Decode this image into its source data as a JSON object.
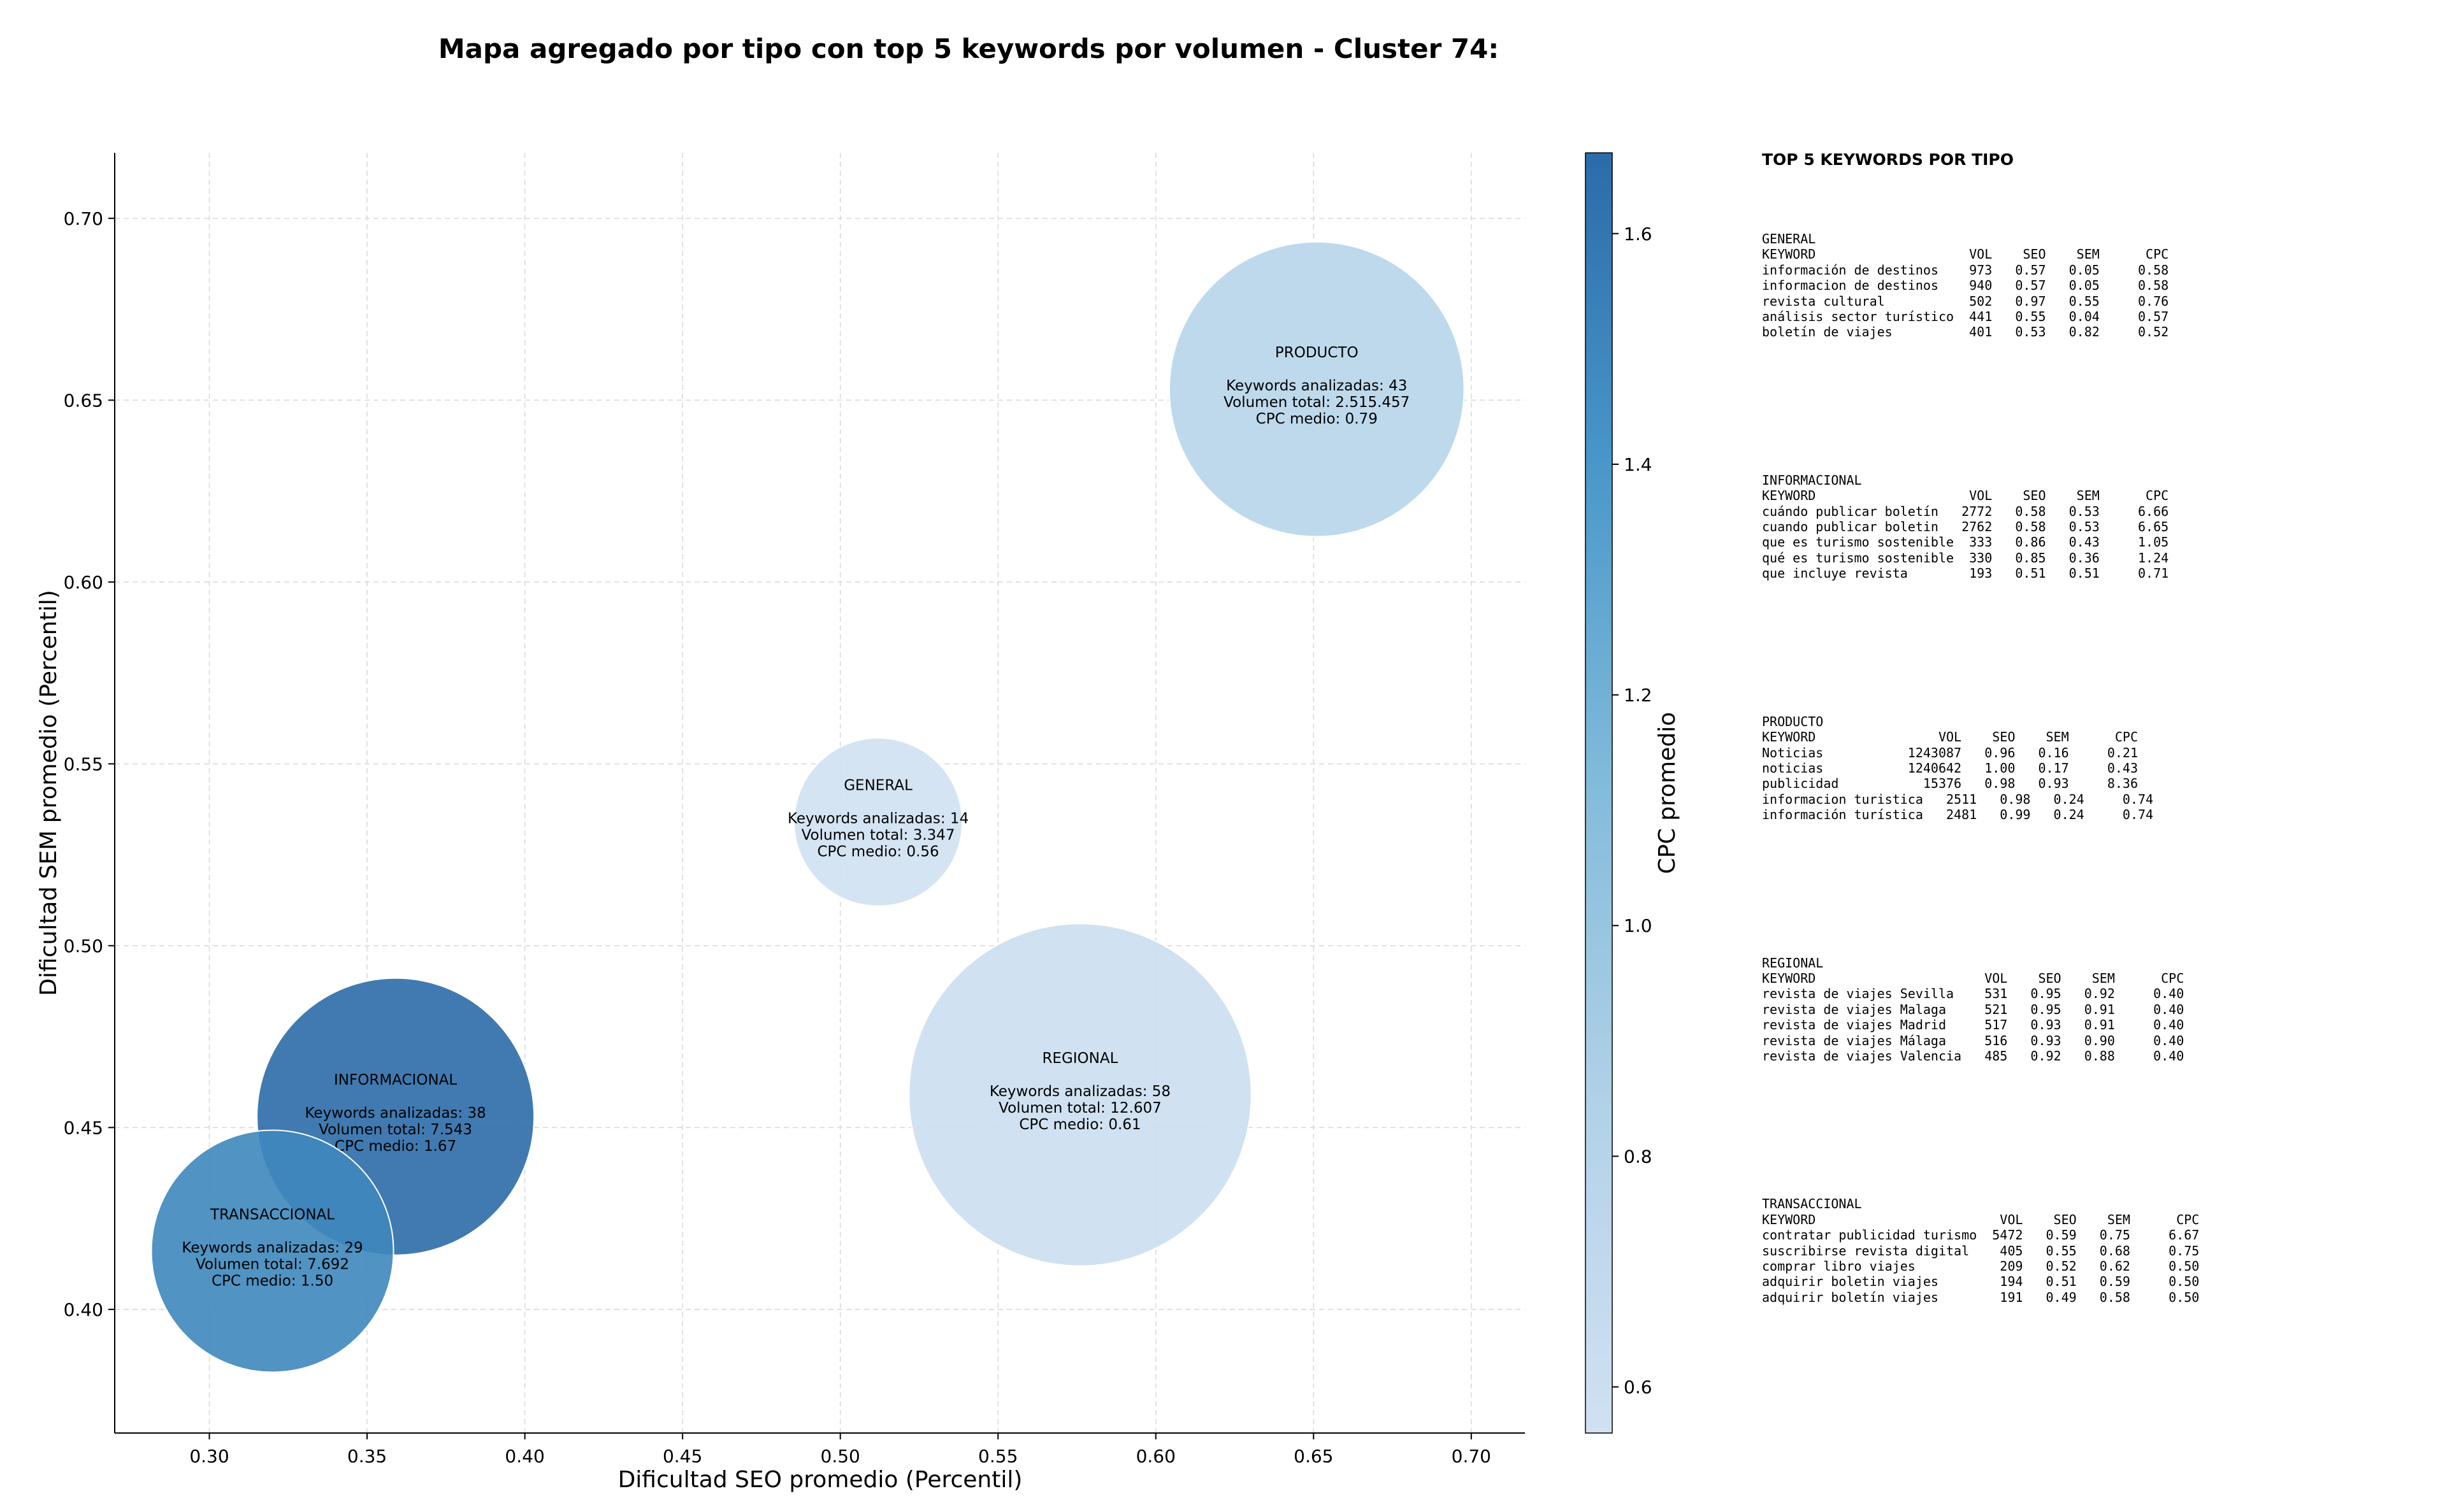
{
  "title": "Mapa agregado por tipo con top 5 keywords por volumen - Cluster 74:",
  "chart_data": {
    "type": "scatter",
    "xlabel": "Dificultad SEO promedio (Percentil)",
    "ylabel": "Dificultad SEM promedio (Percentil)",
    "xlim": [
      0.27,
      0.717
    ],
    "ylim": [
      0.366,
      0.718
    ],
    "xticks": [
      "0.30",
      "0.35",
      "0.40",
      "0.45",
      "0.50",
      "0.55",
      "0.60",
      "0.65",
      "0.70"
    ],
    "yticks": [
      "0.40",
      "0.45",
      "0.50",
      "0.55",
      "0.60",
      "0.65",
      "0.70"
    ],
    "grid": true,
    "colorbar": {
      "label": "CPC promedio",
      "min": 0.56,
      "max": 1.67,
      "ticks": [
        "0.6",
        "0.8",
        "1.0",
        "1.2",
        "1.4",
        "1.6"
      ]
    },
    "bubble_text": {
      "keywords_prefix": "Keywords analizadas: ",
      "volume_prefix": "Volumen total: ",
      "cpc_prefix": "CPC medio: "
    },
    "points": [
      {
        "name": "PRODUCTO",
        "x": 0.651,
        "y": 0.653,
        "keywords": "43",
        "volume": "2.515.457",
        "cpc": 0.79,
        "cpc_label": "0.79"
      },
      {
        "name": "GENERAL",
        "x": 0.512,
        "y": 0.534,
        "keywords": "14",
        "volume": "3.347",
        "cpc": 0.56,
        "cpc_label": "0.56"
      },
      {
        "name": "REGIONAL",
        "x": 0.576,
        "y": 0.459,
        "keywords": "58",
        "volume": "12.607",
        "cpc": 0.61,
        "cpc_label": "0.61"
      },
      {
        "name": "INFORMACIONAL",
        "x": 0.359,
        "y": 0.453,
        "keywords": "38",
        "volume": "7.543",
        "cpc": 1.67,
        "cpc_label": "1.67"
      },
      {
        "name": "TRANSACCIONAL",
        "x": 0.32,
        "y": 0.416,
        "keywords": "29",
        "volume": "7.692",
        "cpc": 1.5,
        "cpc_label": "1.50"
      }
    ]
  },
  "tables": {
    "title": "TOP 5 KEYWORDS POR TIPO",
    "blocks": [
      {
        "type": "GENERAL",
        "lines": [
          "KEYWORD                    VOL    SEO    SEM      CPC",
          "información de destinos    973   0.57   0.05     0.58",
          "informacion de destinos    940   0.57   0.05     0.58",
          "revista cultural           502   0.97   0.55     0.76",
          "análisis sector turístico  441   0.55   0.04     0.57",
          "boletín de viajes          401   0.53   0.82     0.52"
        ]
      },
      {
        "type": "INFORMACIONAL",
        "lines": [
          "KEYWORD                    VOL    SEO    SEM      CPC",
          "cuándo publicar boletín   2772   0.58   0.53     6.66",
          "cuando publicar boletin   2762   0.58   0.53     6.65",
          "que es turismo sostenible  333   0.86   0.43     1.05",
          "qué es turismo sostenible  330   0.85   0.36     1.24",
          "que incluye revista        193   0.51   0.51     0.71"
        ]
      },
      {
        "type": "PRODUCTO",
        "lines": [
          "KEYWORD                VOL    SEO    SEM      CPC",
          "Noticias           1243087   0.96   0.16     0.21",
          "noticias           1240642   1.00   0.17     0.43",
          "publicidad           15376   0.98   0.93     8.36",
          "informacion turistica   2511   0.98   0.24     0.74",
          "información turística   2481   0.99   0.24     0.74"
        ]
      },
      {
        "type": "REGIONAL",
        "lines": [
          "KEYWORD                      VOL    SEO    SEM      CPC",
          "revista de viajes Sevilla    531   0.95   0.92     0.40",
          "revista de viajes Malaga     521   0.95   0.91     0.40",
          "revista de viajes Madrid     517   0.93   0.91     0.40",
          "revista de viajes Málaga     516   0.93   0.90     0.40",
          "revista de viajes Valencia   485   0.92   0.88     0.40"
        ]
      },
      {
        "type": "TRANSACCIONAL",
        "lines": [
          "KEYWORD                        VOL    SEO    SEM      CPC",
          "contratar publicidad turismo  5472   0.59   0.75     6.67",
          "suscribirse revista digital    405   0.55   0.68     0.75",
          "comprar libro viajes           209   0.52   0.62     0.50",
          "adquirir boletin viajes        194   0.51   0.59     0.50",
          "adquirir boletín viajes        191   0.49   0.58     0.50"
        ]
      }
    ]
  }
}
